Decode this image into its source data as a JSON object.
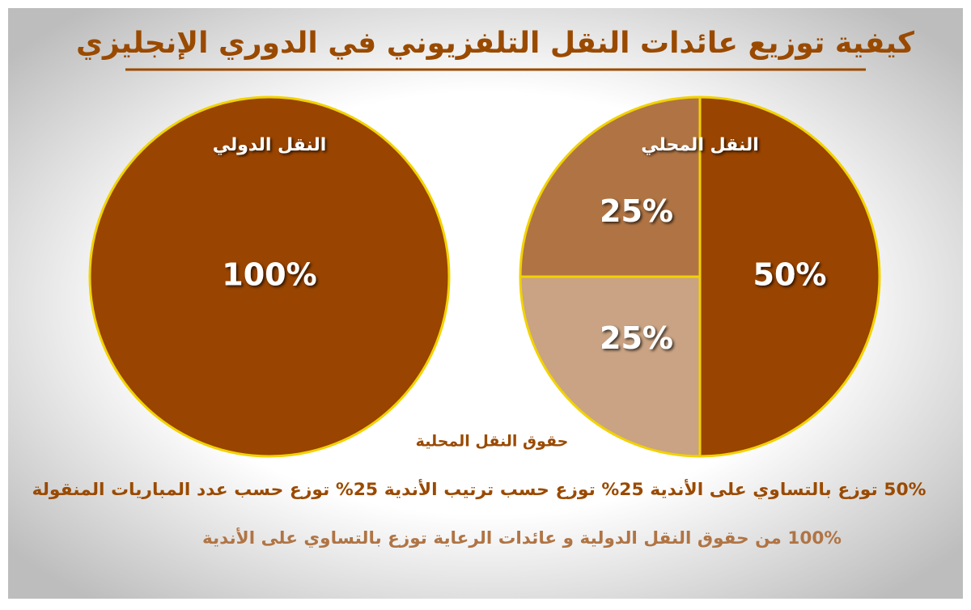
{
  "title": "كيفية توزيع عائدات النقل التلفزيوني في الدوري الإنجليزي",
  "chart_data": [
    {
      "type": "pie",
      "title": "النقل الدولي",
      "values": [
        100
      ],
      "value_labels": [
        "100%"
      ],
      "colors": [
        "#994400"
      ]
    },
    {
      "type": "pie",
      "title": "النقل المحلي",
      "values": [
        50,
        25,
        25
      ],
      "value_labels": [
        "50%",
        "25%",
        "25%"
      ],
      "colors": [
        "#994400",
        "#c9a383",
        "#b07444"
      ]
    }
  ],
  "notes": {
    "heading": "حقوق النقل المحلية",
    "lines": [
      "50% توزع بالتساوي على الأندية  25% توزع حسب ترتيب الأندية  25% توزع حسب عدد المباريات المنقولة",
      "100% من حقوق النقل الدولية و عائدات الرعاية توزع بالتساوي على الأندية"
    ]
  }
}
